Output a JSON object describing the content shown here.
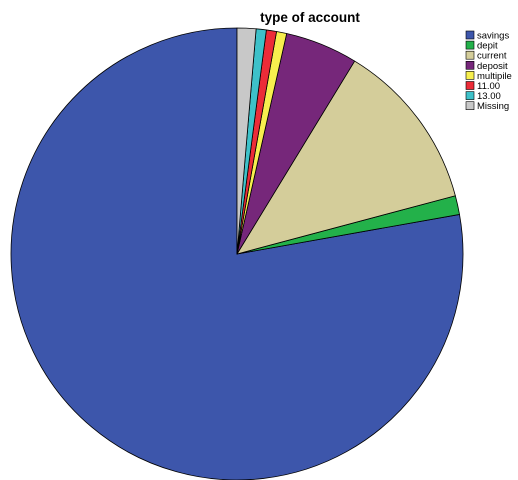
{
  "chart_data": {
    "type": "pie",
    "title": "type of account",
    "categories": [
      "savings",
      "depit",
      "current",
      "deposit",
      "multipile",
      "11.00",
      "13.00",
      "Missing"
    ],
    "values": [
      75.0,
      1.3,
      11.7,
      5.0,
      0.7,
      0.7,
      0.7,
      1.3
    ],
    "unit": "percent of total (estimated)",
    "colors": [
      "#3d56ab",
      "#23b14a",
      "#d4cd9a",
      "#76277a",
      "#f7ef4e",
      "#ec2c38",
      "#3ec1c9",
      "#c8c8c8"
    ],
    "start_angle": "12 o'clock",
    "direction": "counterclockwise",
    "legend_position": "top-right",
    "slice_outline_color": "#000000"
  }
}
